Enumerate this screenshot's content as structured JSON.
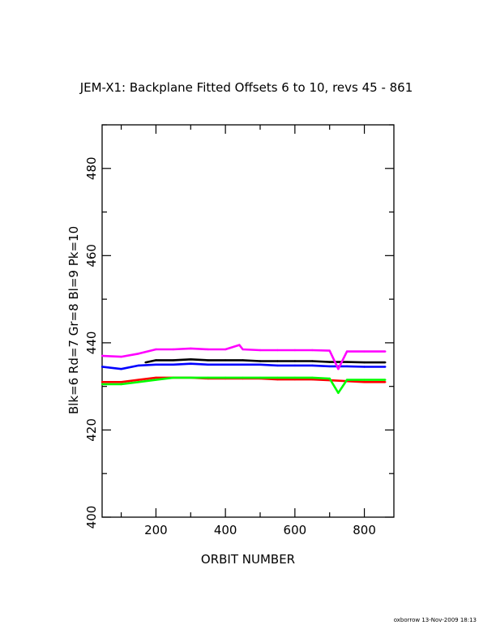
{
  "chart_data": {
    "type": "line",
    "title": "JEM-X1: Backplane Fitted Offsets 6 to 10, revs 45 - 861",
    "xlabel": "ORBIT NUMBER",
    "ylabel": "Blk=6 Rd=7 Gr=8 Bl=9 Pk=10",
    "xlim": [
      45,
      885
    ],
    "ylim": [
      400,
      490
    ],
    "x_ticks": [
      200,
      400,
      600,
      800
    ],
    "y_ticks": [
      400,
      420,
      440,
      460,
      480
    ],
    "grid": false,
    "series": [
      {
        "color": "#000000",
        "x": [
          170,
          200,
          250,
          300,
          350,
          400,
          450,
          500,
          550,
          600,
          650,
          700,
          750,
          800,
          860
        ],
        "y": [
          435.5,
          436.0,
          436.0,
          436.2,
          436.0,
          436.0,
          436.0,
          435.8,
          435.8,
          435.8,
          435.8,
          435.6,
          435.6,
          435.5,
          435.5
        ]
      },
      {
        "color": "#ff0000",
        "x": [
          45,
          100,
          150,
          200,
          250,
          300,
          350,
          400,
          450,
          500,
          550,
          600,
          650,
          700,
          750,
          800,
          860
        ],
        "y": [
          431.0,
          431.0,
          431.5,
          432.0,
          432.0,
          432.0,
          431.8,
          431.8,
          431.8,
          431.8,
          431.6,
          431.6,
          431.6,
          431.4,
          431.2,
          431.0,
          431.0
        ]
      },
      {
        "color": "#00ff00",
        "x": [
          45,
          100,
          150,
          200,
          250,
          300,
          350,
          400,
          450,
          500,
          550,
          600,
          650,
          700,
          725,
          750,
          800,
          860
        ],
        "y": [
          430.5,
          430.5,
          431.0,
          431.5,
          432.0,
          432.0,
          432.0,
          432.0,
          432.0,
          432.0,
          432.0,
          432.0,
          432.0,
          431.8,
          428.5,
          431.5,
          431.5,
          431.5
        ]
      },
      {
        "color": "#0000ff",
        "x": [
          45,
          100,
          150,
          200,
          250,
          300,
          350,
          400,
          450,
          500,
          550,
          600,
          650,
          700,
          750,
          800,
          860
        ],
        "y": [
          434.5,
          434.0,
          434.8,
          435.0,
          435.0,
          435.2,
          435.0,
          435.0,
          435.0,
          435.0,
          434.8,
          434.8,
          434.8,
          434.6,
          434.6,
          434.5,
          434.5
        ]
      },
      {
        "color": "#ff00ff",
        "x": [
          45,
          100,
          150,
          200,
          250,
          300,
          350,
          400,
          440,
          450,
          500,
          550,
          600,
          650,
          700,
          725,
          750,
          800,
          860
        ],
        "y": [
          437.0,
          436.8,
          437.5,
          438.5,
          438.5,
          438.7,
          438.5,
          438.5,
          439.5,
          438.5,
          438.3,
          438.3,
          438.3,
          438.3,
          438.2,
          434.0,
          438.0,
          438.0,
          438.0
        ]
      }
    ]
  },
  "footer": {
    "text": "oxborrow 13-Nov-2009 18:13"
  }
}
